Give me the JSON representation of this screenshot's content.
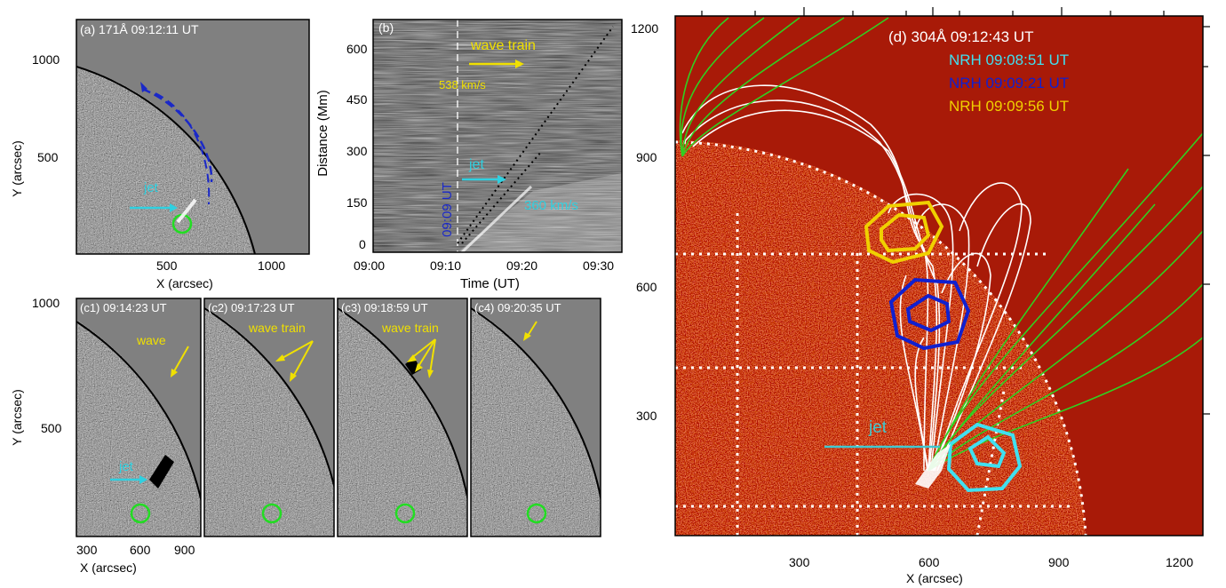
{
  "figure": {
    "panel_a": {
      "title": "(a) 171Å  09:12:11 UT",
      "xlabel": "X (arcsec)",
      "ylabel": "Y (arcsec)",
      "xticks": [
        "500",
        "1000"
      ],
      "yticks": [
        "1000",
        "500"
      ],
      "jet_label": "jet"
    },
    "panel_b": {
      "title": "(b)",
      "xlabel": "Time (UT)",
      "ylabel": "Distance (Mm)",
      "xticks": [
        "09:00",
        "09:10",
        "09:20",
        "09:30"
      ],
      "yticks": [
        "600",
        "450",
        "300",
        "150",
        "0"
      ],
      "wave_train_label": "wave train",
      "wave_speed": "538 km/s",
      "jet_label": "jet",
      "jet_speed": "360 km/s",
      "time_marker": "09:09 UT"
    },
    "panels_c": {
      "ylabel": "Y (arcsec)",
      "xlabel": "X (arcsec)",
      "yticks": [
        "1000",
        "500"
      ],
      "xticks": [
        "300",
        "600",
        "900"
      ],
      "c1": {
        "title": "(c1) 09:14:23 UT",
        "label": "wave",
        "jet_label": "jet"
      },
      "c2": {
        "title": "(c2) 09:17:23 UT",
        "label": "wave train"
      },
      "c3": {
        "title": "(c3) 09:18:59 UT",
        "label": "wave train"
      },
      "c4": {
        "title": "(c4) 09:20:35 UT"
      }
    },
    "panel_d": {
      "title": "(d) 304Å 09:12:43 UT",
      "nrh": [
        {
          "text": "NRH 09:08:51 UT",
          "color": "#40e0f0"
        },
        {
          "text": "NRH 09:09:21 UT",
          "color": "#1020d0"
        },
        {
          "text": "NRH 09:09:56 UT",
          "color": "#f0d000"
        }
      ],
      "jet_label": "jet",
      "xlabel": "X (arcsec)",
      "xticks": [
        "300",
        "600",
        "900",
        "1200"
      ],
      "yticks": [
        "1200",
        "900",
        "600",
        "300"
      ]
    }
  }
}
